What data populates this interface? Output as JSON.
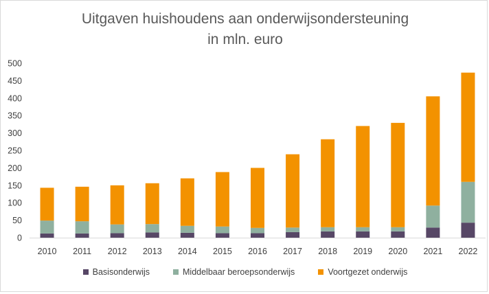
{
  "chart_data": {
    "type": "bar",
    "stacked": true,
    "title": "Uitgaven huishoudens aan onderwijsondersteuning",
    "subtitle": "in mln. euro",
    "categories": [
      "2010",
      "2011",
      "2012",
      "2013",
      "2014",
      "2015",
      "2016",
      "2017",
      "2018",
      "2019",
      "2020",
      "2021",
      "2022"
    ],
    "series": [
      {
        "name": "Basisonderwijs",
        "color": "#574766",
        "values": [
          12,
          12,
          13,
          15,
          14,
          13,
          13,
          16,
          18,
          18,
          18,
          29,
          43
        ]
      },
      {
        "name": "Middelbaar beroepsonderwijs",
        "color": "#8fb09f",
        "values": [
          37,
          35,
          25,
          24,
          20,
          19,
          15,
          13,
          12,
          12,
          12,
          63,
          117
        ]
      },
      {
        "name": "Voortgezet onderwijs",
        "color": "#f39200",
        "values": [
          94,
          99,
          112,
          117,
          136,
          156,
          172,
          210,
          252,
          290,
          299,
          313,
          313
        ]
      }
    ],
    "ylim": [
      0,
      500
    ],
    "yticks": [
      0,
      50,
      100,
      150,
      200,
      250,
      300,
      350,
      400,
      450,
      500
    ],
    "grid": false,
    "legend_position": "bottom",
    "xlabel": "",
    "ylabel": ""
  }
}
